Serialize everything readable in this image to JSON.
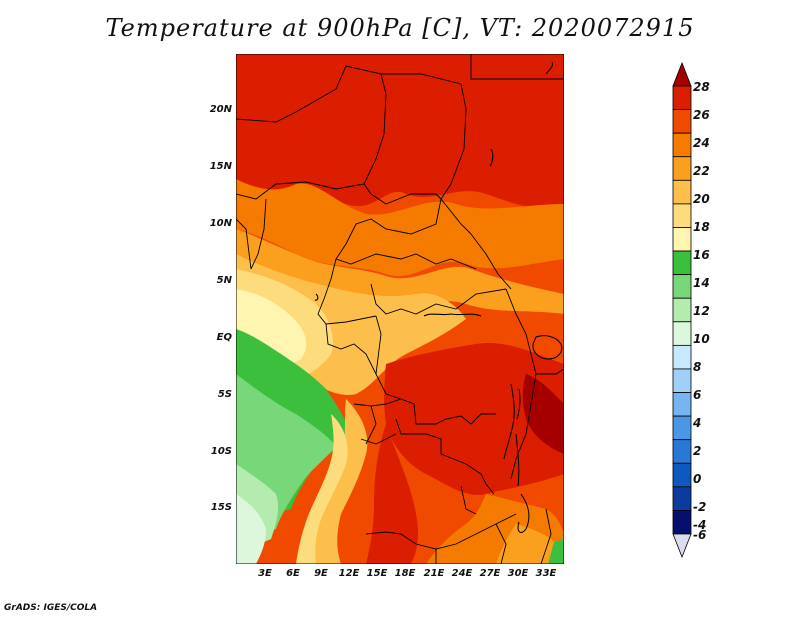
{
  "title": "Temperature at 900hPa [C], VT: 2020072915",
  "credit": "GrADS: IGES/COLA",
  "y_axis": [
    "20N",
    "15N",
    "10N",
    "5N",
    "EQ",
    "5S",
    "10S",
    "15S"
  ],
  "x_axis": [
    "3E",
    "6E",
    "9E",
    "12E",
    "15E",
    "18E",
    "21E",
    "24E",
    "27E",
    "30E",
    "33E"
  ],
  "colorbar": {
    "labels": [
      "28",
      "26",
      "24",
      "22",
      "20",
      "18",
      "16",
      "14",
      "12",
      "10",
      "8",
      "6",
      "4",
      "2",
      "0",
      "-2",
      "-4",
      "-6"
    ],
    "colors": [
      "#a50000",
      "#dc1e00",
      "#f04a00",
      "#f57a00",
      "#fa9f1e",
      "#fdbf4b",
      "#fddc7d",
      "#fff4b0",
      "#3cbf3c",
      "#78d778",
      "#b4ecb0",
      "#ddf7dc",
      "#c8e8ff",
      "#a0d0f8",
      "#78b4f0",
      "#4c96e6",
      "#2a78d6",
      "#0f58c0",
      "#0a3ca0",
      "#060f6e",
      "#dcdcf0"
    ]
  }
}
